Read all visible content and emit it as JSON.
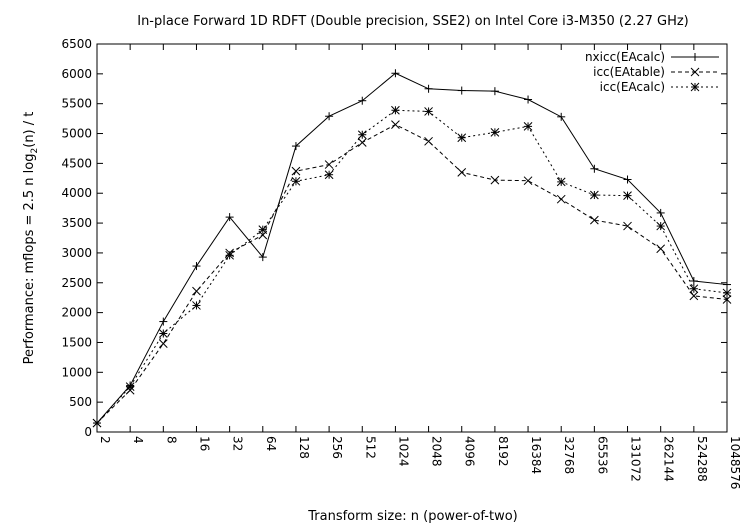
{
  "chart_data": {
    "type": "line",
    "title": "In-place Forward 1D RDFT (Double precision, SSE2) on Intel Core i3-M350 (2.27 GHz)",
    "xlabel": "Transform size: n (power-of-two)",
    "ylabel": "Performance: mflops = 2.5 n log2(n) / t",
    "ylabel_parts": {
      "prefix": "Performance: mflops = 2.5 n log",
      "sub": "2",
      "suffix": "(n) / t"
    },
    "categories": [
      "2",
      "4",
      "8",
      "16",
      "32",
      "64",
      "128",
      "256",
      "512",
      "1024",
      "2048",
      "4096",
      "8192",
      "16384",
      "32768",
      "65536",
      "131072",
      "262144",
      "524288",
      "1048576"
    ],
    "yticks": [
      "0",
      "500",
      "1000",
      "1500",
      "2000",
      "2500",
      "3000",
      "3500",
      "4000",
      "4500",
      "5000",
      "5500",
      "6000",
      "6500"
    ],
    "ylim": [
      0,
      6500
    ],
    "grid": false,
    "legend_position": "top-right",
    "series": [
      {
        "name": "nxicc(EAcalc)",
        "marker": "plus",
        "dash": "solid",
        "values": [
          150,
          780,
          1850,
          2780,
          3600,
          2930,
          4790,
          5290,
          5550,
          6010,
          5750,
          5720,
          5710,
          5570,
          5280,
          4410,
          4230,
          3670,
          2530,
          2470
        ]
      },
      {
        "name": "icc(EAtable)",
        "marker": "cross",
        "dash": "dashed",
        "values": [
          150,
          700,
          1480,
          2360,
          3000,
          3300,
          4370,
          4480,
          4850,
          5150,
          4870,
          4350,
          4220,
          4210,
          3900,
          3550,
          3450,
          3070,
          2280,
          2220
        ]
      },
      {
        "name": "icc(EAcalc)",
        "marker": "star",
        "dash": "dotted",
        "values": [
          150,
          760,
          1650,
          2120,
          2960,
          3390,
          4200,
          4310,
          4980,
          5390,
          5370,
          4930,
          5020,
          5120,
          4190,
          3970,
          3960,
          3450,
          2400,
          2330
        ]
      }
    ]
  }
}
